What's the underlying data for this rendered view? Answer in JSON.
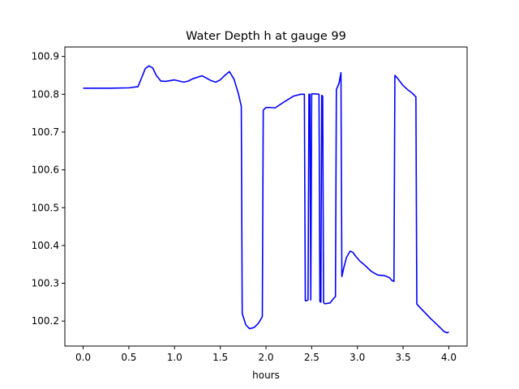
{
  "chart_data": {
    "type": "line",
    "title": "Water Depth h at gauge 99",
    "xlabel": "hours",
    "ylabel": "",
    "xlim": [
      -0.2,
      4.2
    ],
    "ylim": [
      100.134,
      100.925
    ],
    "grid": false,
    "legend": "none",
    "x_ticks": [
      0.0,
      0.5,
      1.0,
      1.5,
      2.0,
      2.5,
      3.0,
      3.5,
      4.0
    ],
    "x_tick_labels": [
      "0.0",
      "0.5",
      "1.0",
      "1.5",
      "2.0",
      "2.5",
      "3.0",
      "3.5",
      "4.0"
    ],
    "y_ticks": [
      100.2,
      100.3,
      100.4,
      100.5,
      100.6,
      100.7,
      100.8,
      100.9
    ],
    "y_tick_labels": [
      "100.2",
      "100.3",
      "100.4",
      "100.5",
      "100.6",
      "100.7",
      "100.8",
      "100.9"
    ],
    "series": [
      {
        "color": "#0000ff",
        "x": [
          0.0,
          0.3,
          0.5,
          0.6,
          0.63,
          0.68,
          0.72,
          0.76,
          0.8,
          0.85,
          0.9,
          1.0,
          1.1,
          1.15,
          1.2,
          1.3,
          1.4,
          1.45,
          1.5,
          1.55,
          1.6,
          1.65,
          1.7,
          1.73,
          1.74,
          1.78,
          1.82,
          1.87,
          1.92,
          1.96,
          1.97,
          2.0,
          2.05,
          2.1,
          2.2,
          2.3,
          2.38,
          2.42,
          2.43,
          2.44,
          2.46,
          2.47,
          2.48,
          2.49,
          2.5,
          2.54,
          2.58,
          2.59,
          2.6,
          2.61,
          2.62,
          2.63,
          2.64,
          2.65,
          2.7,
          2.74,
          2.76,
          2.77,
          2.8,
          2.82,
          2.83,
          2.85,
          2.88,
          2.92,
          2.95,
          2.98,
          3.03,
          3.08,
          3.15,
          3.22,
          3.3,
          3.35,
          3.38,
          3.4,
          3.41,
          3.43,
          3.5,
          3.55,
          3.6,
          3.64,
          3.65,
          3.7,
          3.8,
          3.9,
          3.95,
          3.98,
          4.0
        ],
        "y": [
          100.816,
          100.816,
          100.817,
          100.82,
          100.838,
          100.868,
          100.875,
          100.87,
          100.85,
          100.835,
          100.834,
          100.838,
          100.832,
          100.835,
          100.841,
          100.849,
          100.836,
          100.832,
          100.838,
          100.85,
          100.86,
          100.84,
          100.8,
          100.768,
          100.22,
          100.19,
          100.18,
          100.183,
          100.195,
          100.212,
          100.758,
          100.765,
          100.765,
          100.764,
          100.78,
          100.795,
          100.8,
          100.8,
          100.254,
          100.254,
          100.256,
          100.8,
          100.8,
          100.256,
          100.801,
          100.801,
          100.8,
          100.252,
          100.25,
          100.797,
          100.795,
          100.25,
          100.246,
          100.246,
          100.248,
          100.26,
          100.265,
          100.812,
          100.83,
          100.857,
          100.318,
          100.34,
          100.368,
          100.385,
          100.382,
          100.372,
          100.358,
          100.348,
          100.332,
          100.322,
          100.32,
          100.315,
          100.307,
          100.305,
          100.85,
          100.845,
          100.823,
          100.812,
          100.803,
          100.793,
          100.245,
          100.232,
          100.207,
          100.184,
          100.172,
          100.169,
          100.171
        ]
      }
    ]
  }
}
